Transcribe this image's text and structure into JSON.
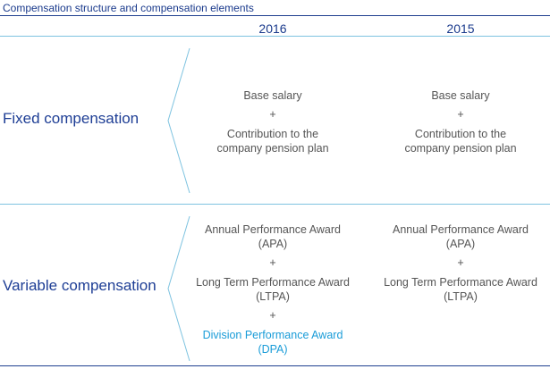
{
  "title": "Compensation structure and compensation elements",
  "columns": [
    "2016",
    "2015"
  ],
  "rows": [
    {
      "label": "Fixed compensation",
      "y2016": [
        {
          "text": "Base salary"
        },
        {
          "text": "Contribution to the\ncompany pension plan"
        }
      ],
      "y2015": [
        {
          "text": "Base salary"
        },
        {
          "text": "Contribution to the\ncompany pension plan"
        }
      ]
    },
    {
      "label": "Variable compensation",
      "y2016": [
        {
          "text": "Annual Performance Award\n(APA)"
        },
        {
          "text": "Long Term Performance Award\n(LTPA)"
        },
        {
          "text": "Division Performance Award\n(DPA)",
          "highlight": true
        }
      ],
      "y2015": [
        {
          "text": "Annual Performance Award\n(APA)"
        },
        {
          "text": "Long Term Performance Award\n(LTPA)"
        }
      ]
    }
  ],
  "separator": "+",
  "colors": {
    "title": "#1a3a8c",
    "row_label": "#1e3e95",
    "body_text": "#555555",
    "highlight": "#1a9cd8",
    "rule_dark": "#1f3f8f",
    "rule_light": "#7ec3e0"
  }
}
